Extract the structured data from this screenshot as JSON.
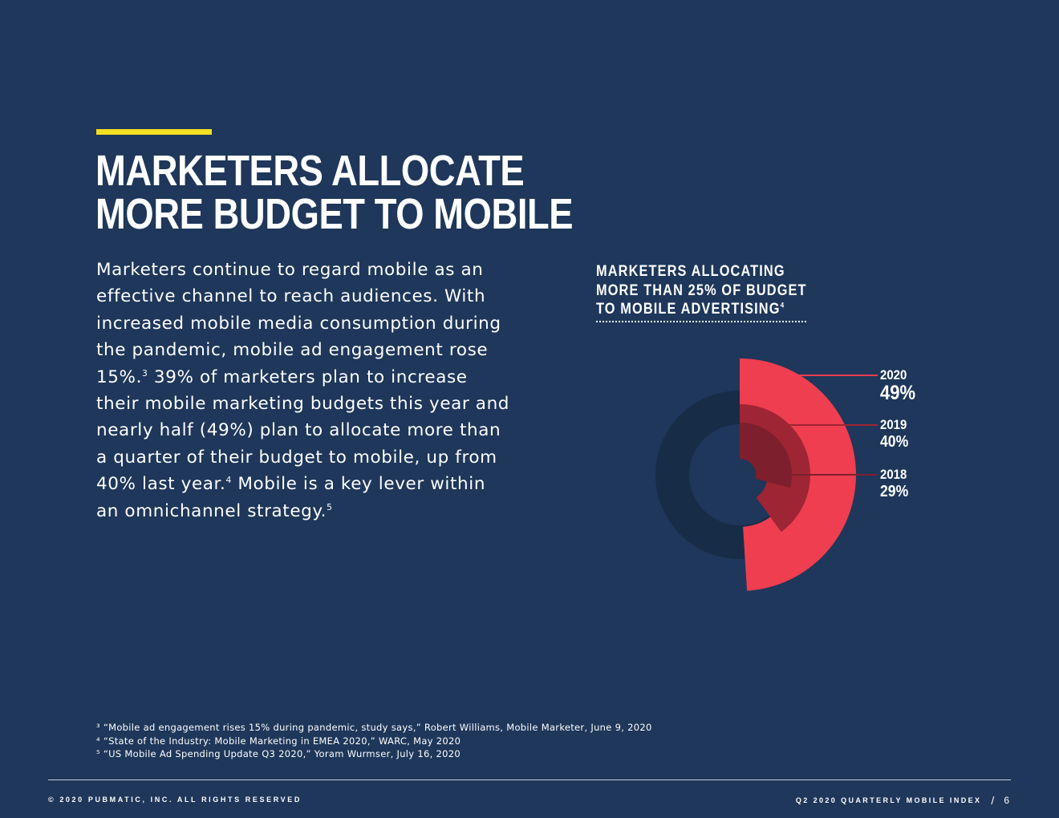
{
  "colors": {
    "background": "#1e375a",
    "accent": "#f2e021",
    "ring_2020": "#ee3e4f",
    "ring_2019": "#9e2533",
    "ring_2018": "#7d1f2c",
    "ring_track": "#172c47"
  },
  "headline": {
    "line1": "MARKETERS ALLOCATE",
    "line2": "MORE BUDGET TO MOBILE"
  },
  "body": {
    "p1": "Marketers continue to regard mobile as an effective channel to reach audiences. With increased mobile media consumption during the pandemic, mobile ad engagement rose 15%.",
    "ref1": "3",
    "p2": " 39% of marketers plan to increase their mobile marketing budgets this year and nearly half (49%) plan to allocate more than a quarter of their budget to mobile, up from 40% last year.",
    "ref2": "4",
    "p3": " Mobile is a key lever within an omnichannel strategy.",
    "ref3": "5"
  },
  "chart_title": {
    "line1": "MARKETERS ALLOCATING",
    "line2": "MORE THAN 25% OF BUDGET",
    "line3": "TO MOBILE ADVERTISING",
    "ref": "4"
  },
  "chart_data": {
    "type": "pie",
    "variant": "concentric radial rings",
    "title": "MARKETERS ALLOCATING MORE THAN 25% OF BUDGET TO MOBILE ADVERTISING",
    "unit": "%",
    "max": 100,
    "series": [
      {
        "name": "2020",
        "value": 49,
        "label": "49%",
        "color": "#ee3e4f"
      },
      {
        "name": "2019",
        "value": 40,
        "label": "40%",
        "color": "#9e2533"
      },
      {
        "name": "2018",
        "value": 29,
        "label": "29%",
        "color": "#7d1f2c"
      }
    ]
  },
  "footnotes": [
    "³ “Mobile ad engagement rises 15% during pandemic, study says,” Robert Williams, Mobile Marketer, June 9, 2020",
    "⁴ “State of the Industry: Mobile Marketing in EMEA 2020,” WARC, May 2020",
    "⁵ “US Mobile Ad Spending Update Q3 2020,” Yoram Wurmser, July 16, 2020"
  ],
  "footer": {
    "copyright": "© 2020 PUBMATIC, INC. ALL RIGHTS RESERVED",
    "publication": "Q2 2020 QUARTERLY MOBILE INDEX",
    "separator": "/",
    "page_number": "6"
  }
}
